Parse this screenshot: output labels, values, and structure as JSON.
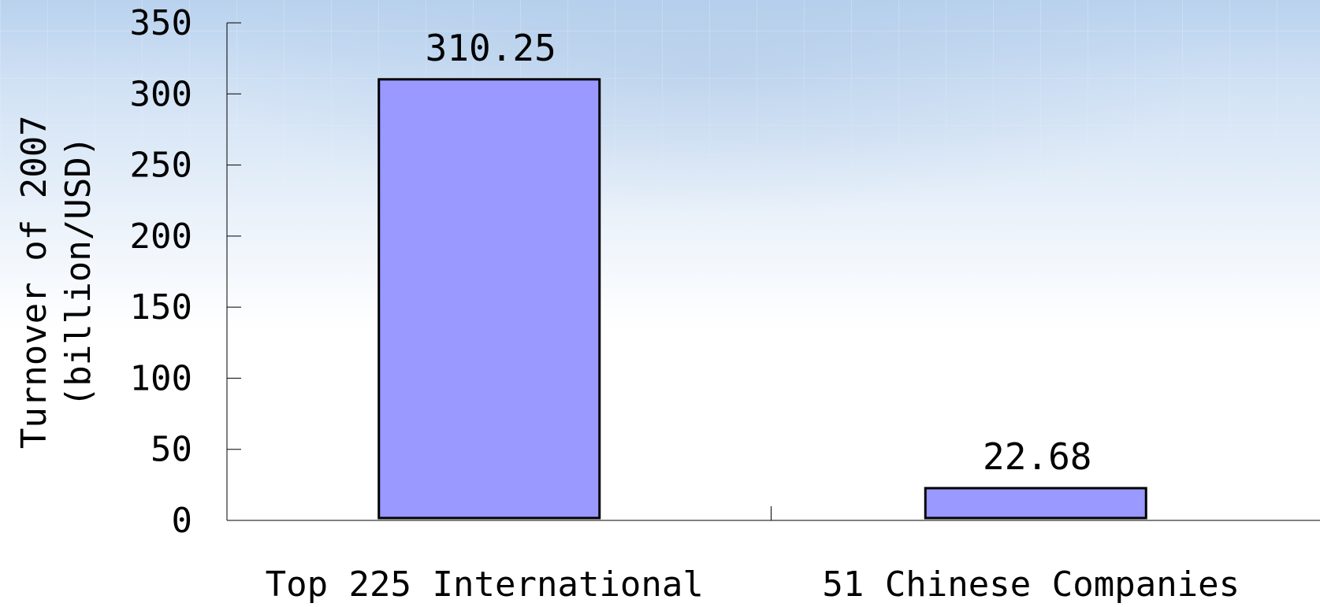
{
  "chart_data": {
    "type": "bar",
    "categories": [
      "Top 225 International",
      "51 Chinese Companies"
    ],
    "values": [
      310.25,
      22.68
    ],
    "data_labels": [
      "310.25",
      "22.68"
    ],
    "title": "",
    "xlabel": "",
    "ylabel_lines": [
      "Turnover of 2007",
      "(billion/USD)"
    ],
    "ylim": [
      0,
      350
    ],
    "y_ticks": [
      0,
      50,
      100,
      150,
      200,
      250,
      300,
      350
    ],
    "grid": false,
    "legend": "none",
    "bar_color": "#9999ff",
    "bar_edge_color": "#000000"
  }
}
